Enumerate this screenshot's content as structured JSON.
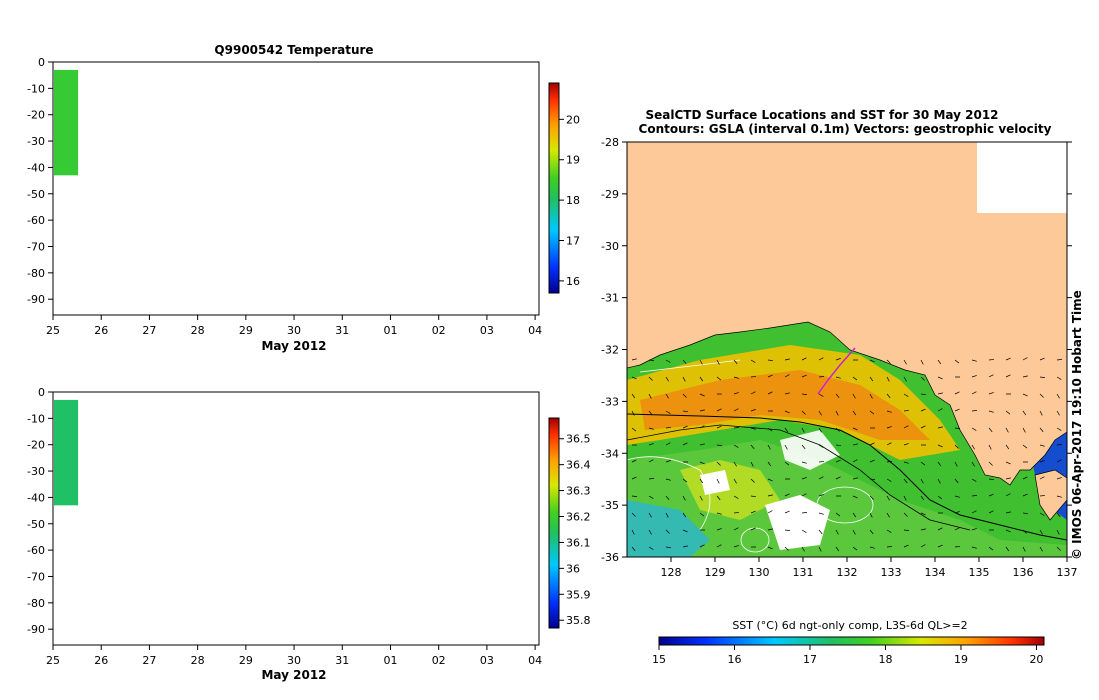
{
  "chart_data": [
    {
      "type": "heatmap",
      "title": "Q9900542  Temperature",
      "xlabel": "May 2012",
      "x_ticks": [
        "25",
        "26",
        "27",
        "28",
        "29",
        "30",
        "31",
        "01",
        "02",
        "03",
        "04"
      ],
      "y_ticks": [
        "0",
        "-10",
        "-20",
        "-30",
        "-40",
        "-50",
        "-60",
        "-70",
        "-80",
        "-90"
      ],
      "ylim": [
        -96,
        0
      ],
      "colorbar_ticks": [
        "16",
        "17",
        "18",
        "19",
        "20"
      ],
      "colorbar_range": [
        15.7,
        20.9
      ],
      "profiles": [
        {
          "day_start": 25.0,
          "day_end": 25.5,
          "depth_top": -3,
          "depth_bottom": -43,
          "value": 18.4
        }
      ]
    },
    {
      "type": "heatmap",
      "title": "",
      "xlabel": "May 2012",
      "x_ticks": [
        "25",
        "26",
        "27",
        "28",
        "29",
        "30",
        "31",
        "01",
        "02",
        "03",
        "04"
      ],
      "y_ticks": [
        "0",
        "-10",
        "-20",
        "-30",
        "-40",
        "-50",
        "-60",
        "-70",
        "-80",
        "-90"
      ],
      "ylim": [
        -96,
        0
      ],
      "colorbar_ticks": [
        "35.8",
        "35.9",
        "36",
        "36.1",
        "36.2",
        "36.3",
        "36.4",
        "36.5"
      ],
      "colorbar_range": [
        35.77,
        36.58
      ],
      "profiles": [
        {
          "day_start": 25.0,
          "day_end": 25.5,
          "depth_top": -3,
          "depth_bottom": -43,
          "value": 36.13
        }
      ]
    },
    {
      "type": "heatmap",
      "title": "SealCTD Surface Locations and SST for 30 May 2012",
      "subtitle": "Contours: GSLA (interval 0.1m) Vectors: geostrophic velocity",
      "x_ticks": [
        "128",
        "129",
        "130",
        "131",
        "132",
        "133",
        "134",
        "135",
        "136",
        "137"
      ],
      "y_ticks": [
        "-28",
        "-29",
        "-30",
        "-31",
        "-32",
        "-33",
        "-34",
        "-35",
        "-36"
      ],
      "xlim": [
        127,
        137
      ],
      "ylim": [
        -36,
        -28
      ],
      "colorbar_label": "SST (°C) 6d ngt-only comp, L3S-6d QL>=2",
      "colorbar_ticks": [
        "15",
        "16",
        "17",
        "18",
        "19",
        "20"
      ],
      "colorbar_range": [
        15,
        20.1
      ],
      "side_label": "© IMOS 06-Apr-2017 19:10 Hobart Time",
      "land_color": "#fdc998"
    }
  ],
  "colors": {
    "green_profile": "#1ec81e",
    "green_profile2": "#20c040",
    "land": "#fdc998"
  }
}
